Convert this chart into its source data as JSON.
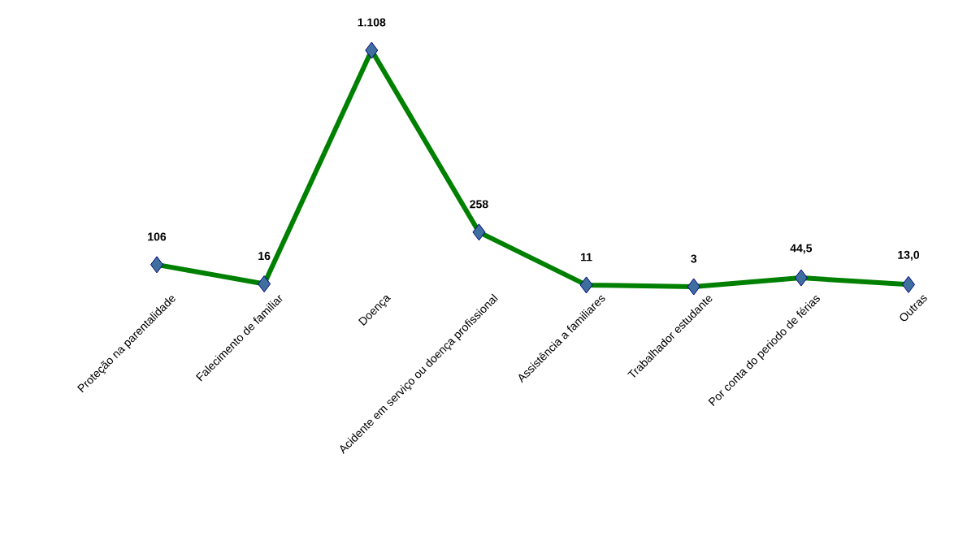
{
  "chart_data": {
    "type": "line",
    "categories": [
      "Proteção na parentalidade",
      "Falecimento de familiar",
      "Doença",
      "Acidente em serviço ou doença profissional",
      "Assistência a familiares",
      "Trabalhador estudante",
      "Por conta do periodo de férias",
      "Outras"
    ],
    "series": [
      {
        "color": "#008000",
        "values": [
          106,
          16,
          1108,
          258,
          11,
          3,
          44.5,
          13.0
        ],
        "value_labels": [
          "106",
          "16",
          "1.108",
          "258",
          "11",
          "3",
          "44,5",
          "13,0"
        ]
      }
    ],
    "marker": "diamond",
    "line_style": "solid"
  }
}
